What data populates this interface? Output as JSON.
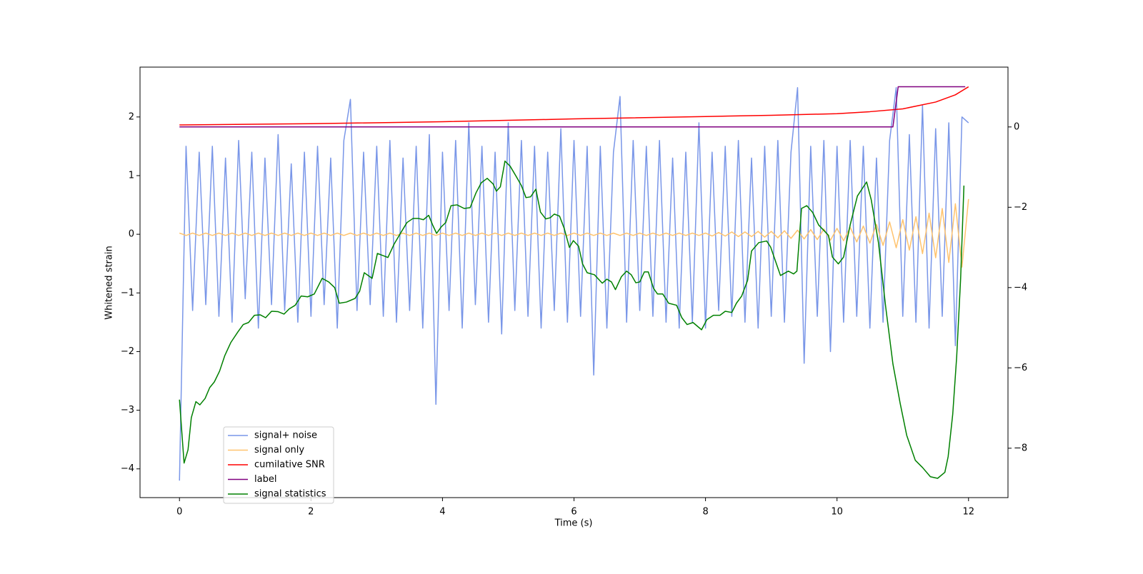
{
  "chart_data": {
    "type": "line",
    "xlabel": "Time (s)",
    "ylabel": "Whitened strain",
    "xlim": [
      -0.6,
      12.6
    ],
    "ylim": [
      -4.49,
      2.85
    ],
    "y2lim": [
      -9.23,
      1.49
    ],
    "xticks": [
      0,
      2,
      4,
      6,
      8,
      10,
      12
    ],
    "yticks": [
      {
        "value": -4,
        "label": "−4"
      },
      {
        "value": -3,
        "label": "−3"
      },
      {
        "value": -2,
        "label": "−2"
      },
      {
        "value": -1,
        "label": "−1"
      },
      0,
      1,
      2
    ],
    "y2ticks": [
      {
        "value": -8,
        "label": "−8"
      },
      {
        "value": -6,
        "label": "−6"
      },
      {
        "value": -4,
        "label": "−4"
      },
      {
        "value": -2,
        "label": "−2"
      },
      0
    ],
    "grid": false,
    "legend": "lower left",
    "x": [
      0,
      0.1,
      0.2,
      0.3,
      0.4,
      0.5,
      0.6,
      0.7,
      0.8,
      0.9,
      1,
      1.1,
      1.2,
      1.3,
      1.4,
      1.5,
      1.6,
      1.7,
      1.8,
      1.9,
      2,
      2.1,
      2.2,
      2.3,
      2.4,
      2.5,
      2.6,
      2.7,
      2.8,
      2.9,
      3,
      3.1,
      3.2,
      3.3,
      3.4,
      3.5,
      3.6,
      3.7,
      3.8,
      3.9,
      4,
      4.1,
      4.2,
      4.3,
      4.4,
      4.5,
      4.6,
      4.7,
      4.8,
      4.9,
      5,
      5.1,
      5.2,
      5.3,
      5.4,
      5.5,
      5.6,
      5.7,
      5.8,
      5.9,
      6,
      6.1,
      6.2,
      6.3,
      6.4,
      6.5,
      6.6,
      6.7,
      6.8,
      6.9,
      7,
      7.1,
      7.2,
      7.3,
      7.4,
      7.5,
      7.6,
      7.7,
      7.8,
      7.9,
      8,
      8.1,
      8.2,
      8.3,
      8.4,
      8.5,
      8.6,
      8.7,
      8.8,
      8.9,
      9,
      9.1,
      9.2,
      9.3,
      9.4,
      9.5,
      9.6,
      9.7,
      9.8,
      9.9,
      10,
      10.1,
      10.2,
      10.3,
      10.4,
      10.5,
      10.6,
      10.7,
      10.8,
      10.9,
      11,
      11.1,
      11.2,
      11.3,
      11.4,
      11.5,
      11.6,
      11.7,
      11.8,
      11.9,
      12
    ],
    "series": [
      {
        "name": "signal+ noise",
        "color": "#7996e8",
        "axis": "y",
        "values": [
          -4.2,
          1.5,
          -1.3,
          1.4,
          -1.2,
          1.5,
          -1.4,
          1.3,
          -1.5,
          1.6,
          -1.1,
          1.4,
          -1.6,
          1.3,
          -1.2,
          1.7,
          -1.3,
          1.2,
          -1.5,
          1.4,
          -1.4,
          1.5,
          -1.2,
          1.3,
          -1.6,
          1.6,
          2.3,
          -1.3,
          1.4,
          -1.2,
          1.5,
          -1.4,
          1.6,
          -1.5,
          1.3,
          -1.3,
          1.5,
          -1.6,
          1.7,
          -2.9,
          1.4,
          -1.3,
          1.6,
          -1.6,
          1.9,
          -1.2,
          1.5,
          -1.5,
          1.4,
          -1.7,
          1.9,
          -1.3,
          1.6,
          -1.4,
          1.5,
          -1.6,
          1.4,
          -1.3,
          1.8,
          -1.5,
          1.6,
          -1.4,
          1.5,
          -2.4,
          1.5,
          -1.6,
          1.4,
          2.35,
          -1.5,
          1.6,
          -1.3,
          1.5,
          -1.4,
          1.6,
          -1.5,
          1.3,
          -1.6,
          1.4,
          -1.5,
          1.9,
          -1.6,
          1.4,
          -1.3,
          1.5,
          -1.4,
          1.6,
          -1.5,
          1.3,
          -1.6,
          1.5,
          -1.4,
          1.6,
          -1.5,
          1.4,
          2.5,
          -2.2,
          1.5,
          -1.4,
          1.6,
          -2.0,
          1.5,
          -1.5,
          1.6,
          -1.4,
          1.5,
          -1.6,
          1.3,
          -1.5,
          1.6,
          2.5,
          -1.4,
          1.7,
          -1.5,
          2.2,
          -1.6,
          1.8,
          -1.4,
          1.9,
          -1.9,
          2.0,
          1.9
        ]
      },
      {
        "name": "signal only",
        "color": "#ffc36e",
        "axis": "y",
        "values": [
          0.02,
          -0.02,
          0.02,
          -0.02,
          0.02,
          -0.02,
          0.02,
          -0.02,
          0.02,
          -0.02,
          0.02,
          -0.02,
          0.02,
          -0.02,
          0.02,
          -0.02,
          0.02,
          -0.02,
          0.02,
          -0.02,
          0.02,
          -0.02,
          0.02,
          -0.02,
          0.02,
          -0.02,
          0.02,
          -0.02,
          0.02,
          -0.02,
          0.02,
          -0.02,
          0.02,
          -0.02,
          0.02,
          -0.02,
          0.02,
          -0.02,
          0.02,
          -0.02,
          0.02,
          -0.02,
          0.02,
          -0.02,
          0.02,
          -0.02,
          0.02,
          -0.02,
          0.02,
          -0.02,
          0.02,
          -0.02,
          0.02,
          -0.02,
          0.02,
          -0.02,
          0.02,
          -0.02,
          0.02,
          -0.02,
          0.02,
          -0.02,
          0.02,
          -0.02,
          0.02,
          -0.02,
          0.02,
          -0.02,
          0.02,
          -0.02,
          0.02,
          -0.02,
          0.02,
          -0.02,
          0.02,
          -0.02,
          0.02,
          -0.02,
          0.02,
          -0.02,
          0.02,
          -0.03,
          0.03,
          -0.03,
          0.04,
          -0.04,
          0.04,
          -0.04,
          0.05,
          -0.05,
          0.05,
          -0.06,
          0.06,
          -0.07,
          0.07,
          -0.08,
          0.08,
          -0.09,
          0.09,
          -0.1,
          0.1,
          -0.11,
          0.12,
          -0.13,
          0.14,
          -0.15,
          0.17,
          -0.19,
          0.21,
          -0.23,
          0.25,
          -0.27,
          0.3,
          -0.33,
          0.36,
          -0.4,
          0.44,
          -0.48,
          0.52,
          -0.56,
          0.6
        ]
      },
      {
        "name": "cumilative SNR",
        "color": "red",
        "axis": "y2",
        "x": [
          0,
          2,
          4,
          6,
          8,
          9,
          10,
          10.5,
          11,
          11.5,
          11.8,
          12
        ],
        "values": [
          0.05,
          0.08,
          0.13,
          0.2,
          0.26,
          0.29,
          0.33,
          0.38,
          0.45,
          0.62,
          0.8,
          1.0
        ]
      },
      {
        "name": "label",
        "color": "purple",
        "axis": "y2",
        "x": [
          0,
          10.85,
          10.93,
          11.95
        ],
        "values": [
          0,
          0,
          1,
          1
        ]
      },
      {
        "name": "signal statistics",
        "color": "green",
        "axis": "y2",
        "x": [
          0,
          0.07,
          0.13,
          0.18,
          0.25,
          0.31,
          0.39,
          0.46,
          0.53,
          0.61,
          0.69,
          0.78,
          0.89,
          0.97,
          1.05,
          1.14,
          1.23,
          1.31,
          1.4,
          1.5,
          1.59,
          1.67,
          1.76,
          1.85,
          1.95,
          2.05,
          2.17,
          2.27,
          2.36,
          2.43,
          2.54,
          2.67,
          2.74,
          2.81,
          2.93,
          3.01,
          3.09,
          3.17,
          3.26,
          3.36,
          3.46,
          3.55,
          3.64,
          3.71,
          3.79,
          3.85,
          3.91,
          3.98,
          4.05,
          4.13,
          4.22,
          4.33,
          4.42,
          4.51,
          4.59,
          4.68,
          4.77,
          4.82,
          4.88,
          4.95,
          5.03,
          5.12,
          5.2,
          5.27,
          5.34,
          5.42,
          5.49,
          5.57,
          5.64,
          5.7,
          5.78,
          5.85,
          5.93,
          5.99,
          6.07,
          6.13,
          6.2,
          6.31,
          6.43,
          6.5,
          6.57,
          6.63,
          6.72,
          6.8,
          6.87,
          6.94,
          7,
          7.07,
          7.13,
          7.21,
          7.27,
          7.35,
          7.44,
          7.56,
          7.64,
          7.72,
          7.81,
          7.94,
          8.02,
          8.12,
          8.22,
          8.3,
          8.4,
          8.47,
          8.55,
          8.64,
          8.7,
          8.81,
          8.93,
          8.99,
          9.14,
          9.26,
          9.34,
          9.39,
          9.46,
          9.54,
          9.63,
          9.72,
          9.79,
          9.87,
          9.93,
          10.02,
          10.1,
          10.2,
          10.31,
          10.45,
          10.52,
          10.63,
          10.74,
          10.85,
          10.96,
          11.06,
          11.19,
          11.3,
          11.42,
          11.53,
          11.64,
          11.69,
          11.76,
          11.82,
          11.88,
          11.93
        ],
        "values": [
          -6.79,
          -8.37,
          -8.04,
          -7.24,
          -6.84,
          -6.92,
          -6.76,
          -6.49,
          -6.35,
          -6.08,
          -5.69,
          -5.37,
          -5.1,
          -4.92,
          -4.87,
          -4.69,
          -4.68,
          -4.75,
          -4.59,
          -4.6,
          -4.66,
          -4.53,
          -4.44,
          -4.21,
          -4.23,
          -4.16,
          -3.77,
          -3.86,
          -4.0,
          -4.39,
          -4.36,
          -4.27,
          -4.09,
          -3.63,
          -3.77,
          -3.15,
          -3.2,
          -3.25,
          -2.93,
          -2.65,
          -2.38,
          -2.28,
          -2.28,
          -2.31,
          -2.2,
          -2.44,
          -2.65,
          -2.49,
          -2.38,
          -1.96,
          -1.94,
          -2.03,
          -2.01,
          -1.64,
          -1.39,
          -1.28,
          -1.42,
          -1.6,
          -1.49,
          -0.85,
          -0.98,
          -1.23,
          -1.46,
          -1.76,
          -1.74,
          -1.55,
          -2.12,
          -2.29,
          -2.26,
          -2.17,
          -2.22,
          -2.52,
          -3.0,
          -2.83,
          -2.97,
          -3.41,
          -3.63,
          -3.68,
          -3.89,
          -3.79,
          -3.86,
          -4.05,
          -3.73,
          -3.59,
          -3.68,
          -3.88,
          -3.86,
          -3.61,
          -3.61,
          -4.02,
          -4.16,
          -4.16,
          -4.39,
          -4.44,
          -4.75,
          -4.92,
          -4.87,
          -5.05,
          -4.8,
          -4.69,
          -4.69,
          -4.59,
          -4.62,
          -4.39,
          -4.21,
          -3.82,
          -3.09,
          -2.88,
          -2.84,
          -2.99,
          -3.7,
          -3.59,
          -3.66,
          -3.59,
          -2.03,
          -1.96,
          -2.13,
          -2.44,
          -2.56,
          -2.7,
          -3.24,
          -3.41,
          -3.24,
          -2.44,
          -1.72,
          -1.37,
          -1.81,
          -2.88,
          -4.48,
          -5.9,
          -6.88,
          -7.68,
          -8.3,
          -8.48,
          -8.71,
          -8.75,
          -8.6,
          -8.21,
          -7.15,
          -5.72,
          -3.77,
          -1.46
        ]
      }
    ]
  }
}
